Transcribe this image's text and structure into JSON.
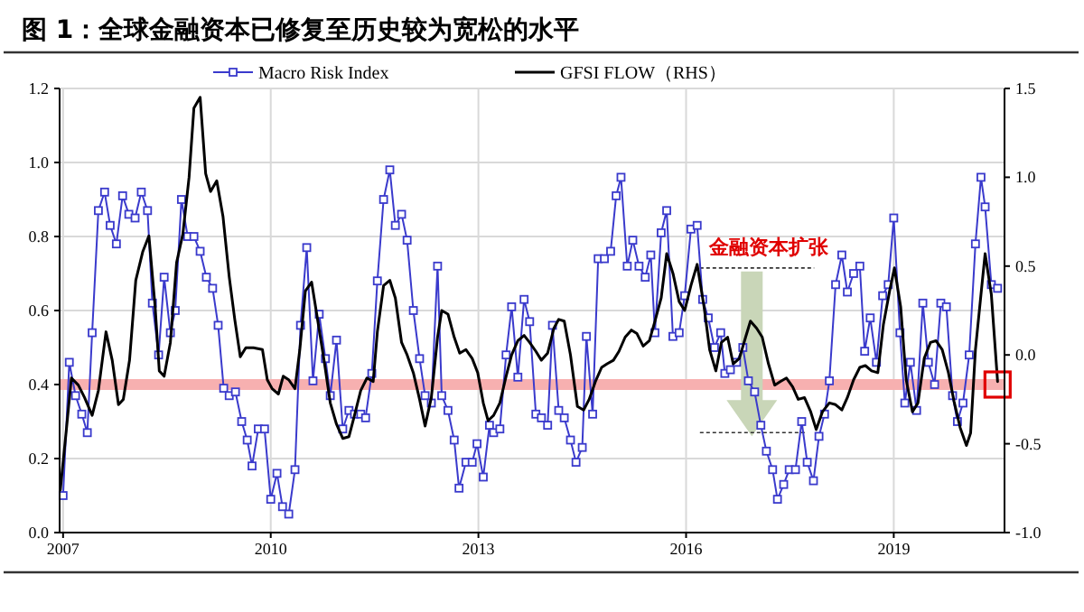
{
  "chart_data": {
    "type": "line",
    "title": "图 1：全球金融资本已修复至历史较为宽松的水平",
    "annotations": [
      "金融资本扩张"
    ],
    "xlim": [
      2006.95,
      2020.6
    ],
    "xticks": [
      2007,
      2010,
      2013,
      2016,
      2019
    ],
    "ylim": [
      0,
      1.2
    ],
    "yticks": [
      {
        "value": 0,
        "label": "0.0"
      },
      {
        "value": 0.2,
        "label": "0.2"
      },
      {
        "value": 0.4,
        "label": "0.4"
      },
      {
        "value": 0.6,
        "label": "0.6"
      },
      {
        "value": 0.8,
        "label": "0.8"
      },
      {
        "value": 1.0,
        "label": "1.0"
      },
      {
        "value": 1.2,
        "label": "1.2"
      }
    ],
    "y2lim": [
      -1.0,
      1.5
    ],
    "y2ticks": [
      {
        "value": -1.0,
        "label": "-1.0"
      },
      {
        "value": -0.5,
        "label": "-0.5"
      },
      {
        "value": 0,
        "label": "0.0"
      },
      {
        "value": 0.5,
        "label": "0.5"
      },
      {
        "value": 1.0,
        "label": "1.0"
      },
      {
        "value": 1.5,
        "label": "1.5"
      }
    ],
    "grid": true,
    "legend": "top",
    "line_style": "solid",
    "ref_lines": [
      {
        "axis": "y",
        "value": 0.4,
        "color": "#f7b0b0"
      }
    ],
    "series": [
      {
        "name": "Macro Risk Index",
        "color": "#3a3acc",
        "marker": "square",
        "x": [
          2007.0,
          2007.09,
          2007.18,
          2007.27,
          2007.35,
          2007.42,
          2007.51,
          2007.6,
          2007.68,
          2007.77,
          2007.86,
          2007.95,
          2008.04,
          2008.13,
          2008.22,
          2008.29,
          2008.38,
          2008.46,
          2008.55,
          2008.62,
          2008.71,
          2008.8,
          2008.89,
          2008.98,
          2009.07,
          2009.16,
          2009.24,
          2009.32,
          2009.4,
          2009.49,
          2009.58,
          2009.66,
          2009.73,
          2009.82,
          2009.91,
          2010.0,
          2010.09,
          2010.17,
          2010.26,
          2010.35,
          2010.43,
          2010.52,
          2010.61,
          2010.7,
          2010.79,
          2010.86,
          2010.95,
          2011.04,
          2011.13,
          2011.21,
          2011.3,
          2011.37,
          2011.46,
          2011.54,
          2011.63,
          2011.72,
          2011.8,
          2011.89,
          2011.97,
          2012.06,
          2012.15,
          2012.23,
          2012.32,
          2012.41,
          2012.47,
          2012.56,
          2012.65,
          2012.72,
          2012.82,
          2012.91,
          2012.98,
          2013.07,
          2013.16,
          2013.22,
          2013.31,
          2013.4,
          2013.48,
          2013.57,
          2013.66,
          2013.74,
          2013.83,
          2013.91,
          2014.0,
          2014.07,
          2014.16,
          2014.24,
          2014.33,
          2014.41,
          2014.5,
          2014.56,
          2014.65,
          2014.73,
          2014.82,
          2014.91,
          2014.99,
          2015.06,
          2015.15,
          2015.23,
          2015.32,
          2015.41,
          2015.49,
          2015.55,
          2015.64,
          2015.72,
          2015.81,
          2015.9,
          2015.98,
          2016.07,
          2016.16,
          2016.24,
          2016.32,
          2016.41,
          2016.5,
          2016.56,
          2016.64,
          2016.73,
          2016.82,
          2016.9,
          2016.99,
          2017.08,
          2017.16,
          2017.25,
          2017.32,
          2017.41,
          2017.49,
          2017.58,
          2017.67,
          2017.75,
          2017.84,
          2017.92,
          2018.0,
          2018.07,
          2018.16,
          2018.25,
          2018.33,
          2018.42,
          2018.51,
          2018.58,
          2018.66,
          2018.75,
          2018.84,
          2018.92,
          2019.0,
          2019.09,
          2019.16,
          2019.24,
          2019.33,
          2019.42,
          2019.5,
          2019.59,
          2019.68,
          2019.76,
          2019.85,
          2019.92,
          2020.0,
          2020.09,
          2020.18,
          2020.26,
          2020.32,
          2020.41,
          2020.5
        ],
        "values": [
          0.1,
          0.46,
          0.37,
          0.32,
          0.27,
          0.54,
          0.87,
          0.92,
          0.83,
          0.78,
          0.91,
          0.86,
          0.85,
          0.92,
          0.87,
          0.62,
          0.48,
          0.69,
          0.54,
          0.6,
          0.9,
          0.8,
          0.8,
          0.76,
          0.69,
          0.66,
          0.56,
          0.39,
          0.37,
          0.38,
          0.3,
          0.25,
          0.18,
          0.28,
          0.28,
          0.09,
          0.16,
          0.07,
          0.05,
          0.17,
          0.56,
          0.77,
          0.41,
          0.59,
          0.47,
          0.37,
          0.52,
          0.28,
          0.33,
          0.32,
          0.32,
          0.31,
          0.43,
          0.68,
          0.9,
          0.98,
          0.83,
          0.86,
          0.79,
          0.6,
          0.47,
          0.37,
          0.35,
          0.72,
          0.37,
          0.33,
          0.25,
          0.12,
          0.19,
          0.19,
          0.24,
          0.15,
          0.29,
          0.27,
          0.28,
          0.48,
          0.61,
          0.42,
          0.63,
          0.57,
          0.32,
          0.31,
          0.29,
          0.56,
          0.33,
          0.31,
          0.25,
          0.19,
          0.23,
          0.53,
          0.32,
          0.74,
          0.74,
          0.76,
          0.91,
          0.96,
          0.72,
          0.79,
          0.72,
          0.69,
          0.75,
          0.54,
          0.81,
          0.87,
          0.53,
          0.54,
          0.64,
          0.82,
          0.83,
          0.63,
          0.58,
          0.5,
          0.54,
          0.43,
          0.44,
          0.46,
          0.5,
          0.41,
          0.38,
          0.29,
          0.22,
          0.17,
          0.09,
          0.13,
          0.17,
          0.17,
          0.3,
          0.19,
          0.14,
          0.26,
          0.32,
          0.41,
          0.67,
          0.75,
          0.65,
          0.7,
          0.72,
          0.49,
          0.58,
          0.46,
          0.64,
          0.67,
          0.85,
          0.54,
          0.35,
          0.46,
          0.33,
          0.62,
          0.46,
          0.4,
          0.62,
          0.61,
          0.37,
          0.3,
          0.35,
          0.48,
          0.78,
          0.96,
          0.88,
          0.67,
          0.66
        ]
      },
      {
        "name": "GFSI FLOW（RHS）",
        "color": "#000000",
        "marker": "none",
        "axis": "y2",
        "x": [
          2006.96,
          2007.04,
          2007.12,
          2007.22,
          2007.31,
          2007.42,
          2007.51,
          2007.62,
          2007.71,
          2007.8,
          2007.87,
          2007.96,
          2008.05,
          2008.15,
          2008.24,
          2008.33,
          2008.39,
          2008.46,
          2008.55,
          2008.64,
          2008.73,
          2008.82,
          2008.89,
          2008.98,
          2009.06,
          2009.13,
          2009.22,
          2009.31,
          2009.4,
          2009.48,
          2009.56,
          2009.64,
          2009.75,
          2009.88,
          2009.95,
          2010.02,
          2010.11,
          2010.18,
          2010.26,
          2010.35,
          2010.42,
          2010.5,
          2010.59,
          2010.66,
          2010.77,
          2010.86,
          2010.95,
          2011.04,
          2011.13,
          2011.21,
          2011.3,
          2011.39,
          2011.48,
          2011.54,
          2011.63,
          2011.72,
          2011.8,
          2011.89,
          2011.97,
          2012.06,
          2012.15,
          2012.23,
          2012.32,
          2012.41,
          2012.47,
          2012.56,
          2012.65,
          2012.73,
          2012.82,
          2012.91,
          2012.99,
          2013.07,
          2013.14,
          2013.22,
          2013.31,
          2013.4,
          2013.48,
          2013.57,
          2013.66,
          2013.74,
          2013.83,
          2013.91,
          2014.0,
          2014.09,
          2014.16,
          2014.24,
          2014.33,
          2014.43,
          2014.52,
          2014.6,
          2014.69,
          2014.78,
          2014.86,
          2014.95,
          2015.03,
          2015.12,
          2015.21,
          2015.29,
          2015.38,
          2015.47,
          2015.55,
          2015.64,
          2015.72,
          2015.81,
          2015.9,
          2015.98,
          2016.07,
          2016.16,
          2016.26,
          2016.34,
          2016.43,
          2016.51,
          2016.6,
          2016.68,
          2016.77,
          2016.86,
          2016.93,
          2017.02,
          2017.1,
          2017.19,
          2017.28,
          2017.36,
          2017.45,
          2017.54,
          2017.62,
          2017.71,
          2017.8,
          2017.88,
          2017.97,
          2018.07,
          2018.16,
          2018.25,
          2018.33,
          2018.42,
          2018.51,
          2018.59,
          2018.68,
          2018.77,
          2018.85,
          2018.94,
          2019.01,
          2019.1,
          2019.18,
          2019.27,
          2019.35,
          2019.44,
          2019.53,
          2019.61,
          2019.7,
          2019.79,
          2019.87,
          2019.96,
          2020.05,
          2020.11,
          2020.18,
          2020.26,
          2020.32,
          2020.41,
          2020.5
        ],
        "values": [
          -0.76,
          -0.45,
          -0.13,
          -0.17,
          -0.24,
          -0.34,
          -0.2,
          0.13,
          -0.03,
          -0.28,
          -0.25,
          -0.03,
          0.42,
          0.58,
          0.67,
          0.27,
          -0.09,
          -0.12,
          0.07,
          0.52,
          0.68,
          1.0,
          1.39,
          1.45,
          1.02,
          0.92,
          0.98,
          0.78,
          0.44,
          0.2,
          -0.01,
          0.04,
          0.04,
          0.03,
          -0.14,
          -0.19,
          -0.22,
          -0.12,
          -0.14,
          -0.19,
          0.03,
          0.36,
          0.41,
          0.24,
          -0.03,
          -0.27,
          -0.39,
          -0.47,
          -0.46,
          -0.34,
          -0.2,
          -0.13,
          -0.15,
          0.13,
          0.39,
          0.42,
          0.32,
          0.07,
          0.0,
          -0.1,
          -0.25,
          -0.4,
          -0.24,
          0.1,
          0.25,
          0.23,
          0.1,
          0.01,
          0.03,
          -0.02,
          -0.1,
          -0.27,
          -0.37,
          -0.34,
          -0.27,
          -0.12,
          0.0,
          0.08,
          0.11,
          0.07,
          0.02,
          -0.03,
          0.01,
          0.15,
          0.2,
          0.19,
          0.0,
          -0.29,
          -0.31,
          -0.25,
          -0.15,
          -0.07,
          -0.05,
          -0.03,
          0.02,
          0.1,
          0.14,
          0.12,
          0.05,
          0.08,
          0.19,
          0.32,
          0.57,
          0.46,
          0.3,
          0.25,
          0.39,
          0.51,
          0.27,
          0.03,
          -0.09,
          0.07,
          0.1,
          -0.05,
          -0.02,
          0.1,
          0.19,
          0.15,
          0.1,
          -0.05,
          -0.17,
          -0.15,
          -0.13,
          -0.18,
          -0.25,
          -0.24,
          -0.32,
          -0.42,
          -0.32,
          -0.27,
          -0.28,
          -0.31,
          -0.24,
          -0.14,
          -0.07,
          -0.06,
          -0.09,
          -0.1,
          0.17,
          0.36,
          0.49,
          0.27,
          -0.14,
          -0.32,
          -0.27,
          -0.02,
          0.07,
          0.08,
          0.03,
          -0.1,
          -0.26,
          -0.41,
          -0.51,
          -0.44,
          0.03,
          0.34,
          0.57,
          0.34,
          -0.15
        ]
      }
    ]
  }
}
